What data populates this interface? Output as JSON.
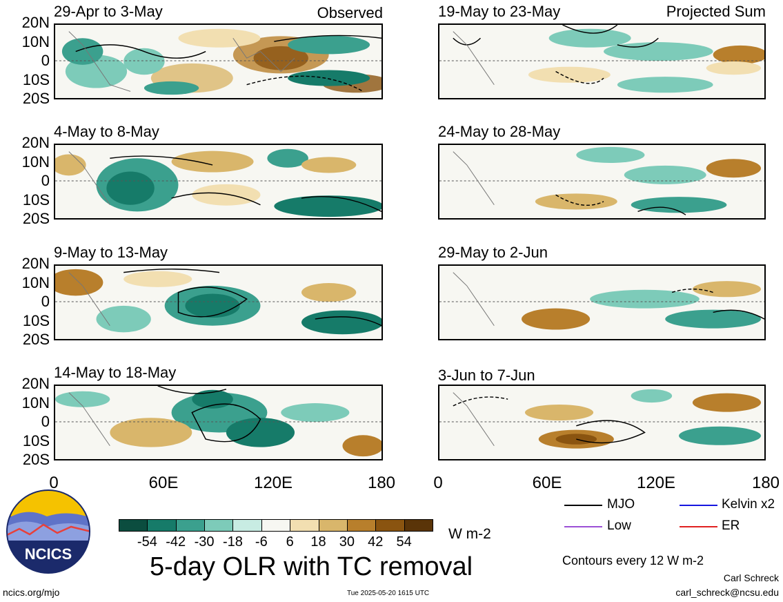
{
  "header": {
    "observed_label": "Observed",
    "projected_label": "Projected Sum"
  },
  "panels_left": [
    {
      "title": "29-Apr to 3-May"
    },
    {
      "title": "4-May to 8-May"
    },
    {
      "title": "9-May to 13-May"
    },
    {
      "title": "14-May to 18-May"
    }
  ],
  "panels_right": [
    {
      "title": "19-May to 23-May"
    },
    {
      "title": "24-May to 28-May"
    },
    {
      "title": "29-May to 2-Jun"
    },
    {
      "title": "3-Jun to 7-Jun"
    }
  ],
  "axes": {
    "y_ticks": [
      "20N",
      "10N",
      "0",
      "10S",
      "20S"
    ],
    "x_ticks": [
      "0",
      "60E",
      "120E",
      "180"
    ]
  },
  "colorbar": {
    "labels": [
      "-54",
      "-42",
      "-30",
      "-18",
      "-6",
      "6",
      "18",
      "30",
      "42",
      "54"
    ],
    "colors": [
      "#0b4d3f",
      "#167b69",
      "#3ba08e",
      "#7dcbb9",
      "#c8ece3",
      "#f7f7f2",
      "#f2dfb1",
      "#d9b66b",
      "#b87f2c",
      "#8a5410",
      "#5a3408"
    ],
    "units": "W m-2"
  },
  "legend": {
    "mjo": {
      "label": "MJO",
      "color": "#000000"
    },
    "kelvin": {
      "label": "Kelvin x2",
      "color": "#1515e0"
    },
    "low": {
      "label": "Low",
      "color": "#9b4fd6"
    },
    "er": {
      "label": "ER",
      "color": "#e02020"
    },
    "contours_note": "Contours every 12 W m-2"
  },
  "footer": {
    "main_title": "5-day OLR with TC removal",
    "logo_text": "NCICS",
    "url": "ncics.org/mjo",
    "timestamp": "Tue 2025-05-20 1615 UTC",
    "author": "Carl Schreck",
    "email": "carl_schreck@ncsu.edu"
  }
}
